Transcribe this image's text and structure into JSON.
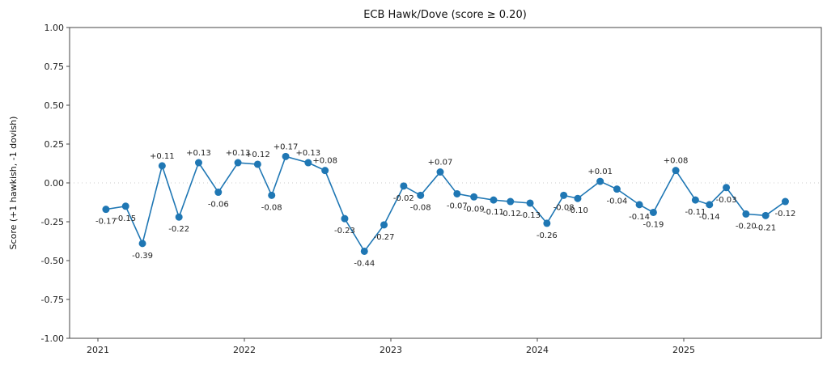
{
  "chart_data": {
    "type": "line",
    "title": "ECB Hawk/Dove (score ≥ 0.20)",
    "xlabel": "",
    "ylabel": "Score (+1 hawkish, -1 dovish)",
    "ylim": [
      -1.0,
      1.0
    ],
    "yticks": [
      "-1.00",
      "-0.75",
      "-0.50",
      "-0.25",
      "0.00",
      "0.25",
      "0.50",
      "0.75",
      "1.00"
    ],
    "xticks": [
      "2021",
      "2022",
      "2023",
      "2024",
      "2025"
    ],
    "grid": false,
    "zero_line": "dotted",
    "color": "#1f77b4",
    "x": [
      "2021-01-21",
      "2021-03-11",
      "2021-04-22",
      "2021-06-10",
      "2021-07-22",
      "2021-09-09",
      "2021-10-28",
      "2021-12-16",
      "2022-02-03",
      "2022-03-10",
      "2022-04-14",
      "2022-06-09",
      "2022-07-21",
      "2022-09-08",
      "2022-10-27",
      "2022-12-15",
      "2023-02-02",
      "2023-03-16",
      "2023-05-04",
      "2023-06-15",
      "2023-07-27",
      "2023-09-14",
      "2023-10-26",
      "2023-12-14",
      "2024-01-25",
      "2024-03-07",
      "2024-04-11",
      "2024-06-06",
      "2024-07-18",
      "2024-09-12",
      "2024-10-17",
      "2024-12-12",
      "2025-01-30",
      "2025-03-06",
      "2025-04-17",
      "2025-06-05",
      "2025-07-24",
      "2025-09-11"
    ],
    "values": [
      -0.17,
      -0.15,
      -0.39,
      0.11,
      -0.22,
      0.13,
      -0.06,
      0.13,
      0.12,
      -0.08,
      0.17,
      0.13,
      0.08,
      -0.23,
      -0.44,
      -0.27,
      -0.02,
      -0.08,
      0.07,
      -0.07,
      -0.09,
      -0.11,
      -0.12,
      -0.13,
      -0.26,
      -0.08,
      -0.1,
      0.01,
      -0.04,
      -0.14,
      -0.19,
      0.08,
      -0.11,
      -0.14,
      -0.03,
      -0.2,
      -0.21,
      -0.12
    ]
  }
}
